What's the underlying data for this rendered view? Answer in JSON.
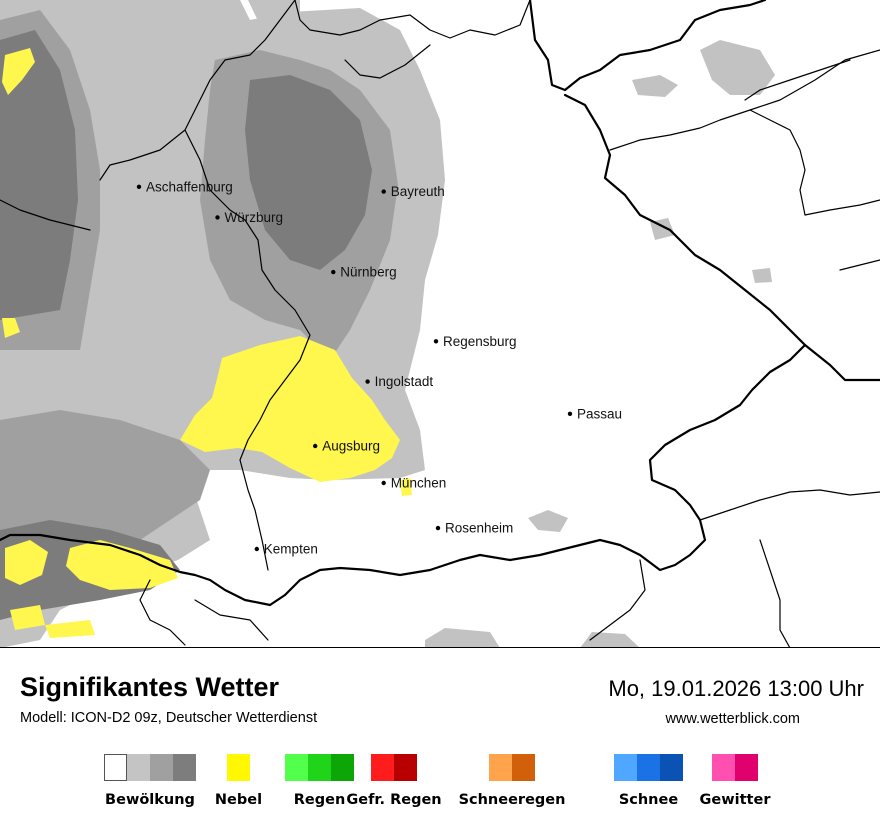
{
  "map": {
    "cities": [
      {
        "name": "Aschaffenburg",
        "lon": 9.15,
        "lat": 49.98
      },
      {
        "name": "Würzburg",
        "lon": 9.93,
        "lat": 49.79
      },
      {
        "name": "Bayreuth",
        "lon": 11.58,
        "lat": 49.95
      },
      {
        "name": "Nürnberg",
        "lon": 11.08,
        "lat": 49.45
      },
      {
        "name": "Regensburg",
        "lon": 12.1,
        "lat": 49.02
      },
      {
        "name": "Ingolstadt",
        "lon": 11.42,
        "lat": 48.77
      },
      {
        "name": "Passau",
        "lon": 13.43,
        "lat": 48.57
      },
      {
        "name": "Augsburg",
        "lon": 10.9,
        "lat": 48.37
      },
      {
        "name": "München",
        "lon": 11.58,
        "lat": 48.14
      },
      {
        "name": "Rosenheim",
        "lon": 12.12,
        "lat": 47.86
      },
      {
        "name": "Kempten",
        "lon": 10.32,
        "lat": 47.73
      }
    ],
    "colors": {
      "cloud_light": "#c2c2c2",
      "cloud_medium": "#a0a0a0",
      "cloud_dark": "#7c7c7c",
      "fog": "#fff64e",
      "border": "#000000"
    }
  },
  "footer": {
    "title": "Signifikantes Wetter",
    "model": "Modell: ICON-D2 09z, Deutscher Wetterdienst",
    "datetime": "Mo, 19.01.2026 13:00 Uhr",
    "website": "www.wetterblick.com"
  },
  "legend": [
    {
      "label": "Bewölkung",
      "colors": [
        "#ffffff",
        "#c4c4c4",
        "#a0a0a0",
        "#7d7d7d"
      ]
    },
    {
      "label": "Nebel",
      "colors": [
        "#fff800"
      ]
    },
    {
      "label": "Regen",
      "colors": [
        "#52ff4a",
        "#20d41a",
        "#0ca606"
      ]
    },
    {
      "label": "Gefr. Regen",
      "colors": [
        "#ff1c1c",
        "#b80000"
      ]
    },
    {
      "label": "Schneeregen",
      "colors": [
        "#ffa44d",
        "#d25f0a"
      ]
    },
    {
      "label": "Schnee",
      "colors": [
        "#4fa7ff",
        "#1b72e4",
        "#0a52b4"
      ]
    },
    {
      "label": "Gewitter",
      "colors": [
        "#ff4fb0",
        "#e0006e"
      ]
    }
  ]
}
